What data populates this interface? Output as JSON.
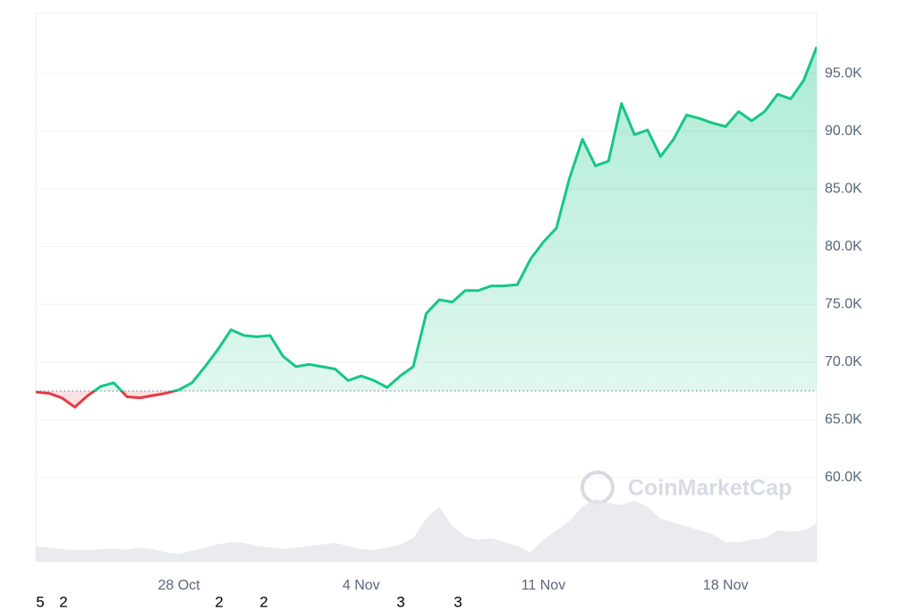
{
  "chart_data": {
    "type": "line",
    "categories": [
      null,
      null,
      null,
      null,
      null,
      null,
      null,
      null,
      null,
      null,
      null,
      "28 Oct",
      null,
      null,
      null,
      null,
      null,
      null,
      null,
      null,
      null,
      null,
      null,
      null,
      null,
      "4 Nov",
      null,
      null,
      null,
      null,
      null,
      null,
      null,
      null,
      null,
      null,
      null,
      null,
      null,
      "11 Nov",
      null,
      null,
      null,
      null,
      null,
      null,
      null,
      null,
      null,
      null,
      null,
      null,
      null,
      "18 Nov",
      null,
      null,
      null,
      null,
      null,
      null,
      null
    ],
    "series": [
      {
        "name": "Price",
        "color": "#16c784",
        "below_color": "#ea3943",
        "values": [
          67400,
          67300,
          66900,
          66100,
          67100,
          67900,
          68200,
          67000,
          66900,
          67100,
          67300,
          67600,
          68200,
          69600,
          71100,
          72800,
          72300,
          72200,
          72300,
          70500,
          69600,
          69800,
          69600,
          69400,
          68400,
          68800,
          68400,
          67800,
          68800,
          69600,
          74200,
          75400,
          75200,
          76200,
          76200,
          76600,
          76600,
          76700,
          78900,
          80400,
          81600,
          85900,
          89300,
          87000,
          87400,
          92400,
          89700,
          90100,
          87800,
          89300,
          91400,
          91100,
          90700,
          90400,
          91700,
          90900,
          91700,
          93200,
          92800,
          94400,
          97300
        ]
      },
      {
        "name": "Volume",
        "color": "#e3e6ea",
        "axis": "y2",
        "values": [
          20,
          18,
          16,
          15,
          15,
          16,
          17,
          15,
          18,
          16,
          12,
          10,
          14,
          18,
          22,
          25,
          24,
          20,
          18,
          16,
          18,
          20,
          22,
          24,
          20,
          16,
          15,
          18,
          22,
          30,
          55,
          70,
          45,
          32,
          28,
          30,
          25,
          20,
          12,
          28,
          40,
          52,
          70,
          80,
          75,
          72,
          78,
          70,
          55,
          50,
          45,
          40,
          35,
          25,
          25,
          28,
          30,
          40,
          38,
          40,
          48
        ]
      }
    ],
    "baseline": 67500,
    "ylim": [
      52700,
      100200
    ],
    "yticks": [
      {
        "value": 60000,
        "label": "60.0K"
      },
      {
        "value": 65000,
        "label": "65.0K"
      },
      {
        "value": 70000,
        "label": "70.0K"
      },
      {
        "value": 75000,
        "label": "75.0K"
      },
      {
        "value": 80000,
        "label": "80.0K"
      },
      {
        "value": 85000,
        "label": "85.0K"
      },
      {
        "value": 90000,
        "label": "90.0K"
      },
      {
        "value": 95000,
        "label": "95.0K"
      }
    ],
    "y2lim": [
      0,
      100
    ],
    "grid": true,
    "watermark": "CoinMarketCap",
    "footer_digits": [
      "5",
      "2",
      "2",
      "2",
      "3",
      "3"
    ]
  }
}
